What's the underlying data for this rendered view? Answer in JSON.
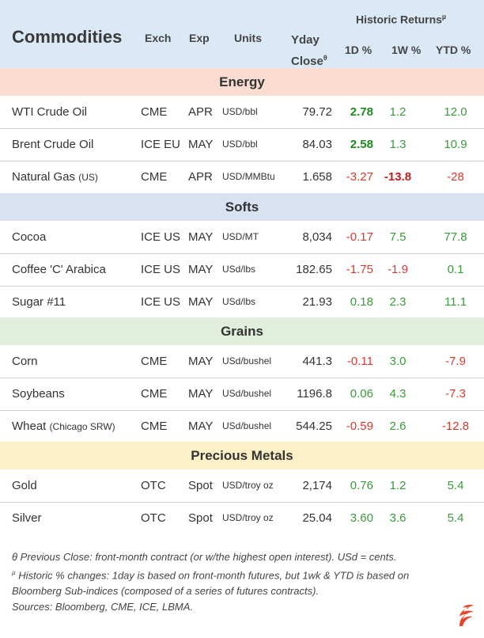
{
  "header": {
    "title": "Commodities",
    "exch": "Exch",
    "exp": "Exp",
    "units": "Units",
    "yday_line1": "Yday",
    "yday_line2": "Close",
    "yday_mark": "θ",
    "hist": "Historic Returns",
    "hist_mark": "µ",
    "col_1d": "1D %",
    "col_1w": "1W %",
    "col_ytd": "YTD %"
  },
  "sections": {
    "energy": "Energy",
    "softs": "Softs",
    "grains": "Grains",
    "metals": "Precious Metals"
  },
  "rows": [
    {
      "name": "WTI Crude Oil",
      "sub": "",
      "exch": "CME",
      "exp": "APR",
      "units": "USD/bbl",
      "close": "79.72",
      "d1": "2.78",
      "w1": "1.2",
      "ytd": "12.0"
    },
    {
      "name": "Brent Crude Oil",
      "sub": "",
      "exch": "ICE EU",
      "exp": "MAY",
      "units": "USD/bbl",
      "close": "84.03",
      "d1": "2.58",
      "w1": "1.3",
      "ytd": "10.9"
    },
    {
      "name": "Natural Gas ",
      "sub": "(US)",
      "exch": "CME",
      "exp": "APR",
      "units": "USD/MMBtu",
      "close": "1.658",
      "d1": "-3.27",
      "w1": "-13.8",
      "ytd": "-28"
    },
    {
      "name": "Cocoa",
      "sub": "",
      "exch": "ICE US",
      "exp": "MAY",
      "units": "USD/MT",
      "close": "8,034",
      "d1": "-0.17",
      "w1": "7.5",
      "ytd": "77.8"
    },
    {
      "name": "Coffee 'C' Arabica",
      "sub": "",
      "exch": "ICE US",
      "exp": "MAY",
      "units": "USd/lbs",
      "close": "182.65",
      "d1": "-1.75",
      "w1": "-1.9",
      "ytd": "0.1"
    },
    {
      "name": "Sugar #11",
      "sub": "",
      "exch": "ICE US",
      "exp": "MAY",
      "units": "USd/lbs",
      "close": "21.93",
      "d1": "0.18",
      "w1": "2.3",
      "ytd": "11.1"
    },
    {
      "name": "Corn",
      "sub": "",
      "exch": "CME",
      "exp": "MAY",
      "units": "USd/bushel",
      "close": "441.3",
      "d1": "-0.11",
      "w1": "3.0",
      "ytd": "-7.9"
    },
    {
      "name": "Soybeans",
      "sub": "",
      "exch": "CME",
      "exp": "MAY",
      "units": "USd/bushel",
      "close": "1196.8",
      "d1": "0.06",
      "w1": "4.3",
      "ytd": "-7.3"
    },
    {
      "name": "Wheat ",
      "sub": "(Chicago SRW)",
      "exch": "CME",
      "exp": "MAY",
      "units": "USd/bushel",
      "close": "544.25",
      "d1": "-0.59",
      "w1": "2.6",
      "ytd": "-12.8"
    },
    {
      "name": "Gold",
      "sub": "",
      "exch": "OTC",
      "exp": "Spot",
      "units": "USD/troy oz",
      "close": "2,174",
      "d1": "0.76",
      "w1": "1.2",
      "ytd": "5.4"
    },
    {
      "name": "Silver",
      "sub": "",
      "exch": "OTC",
      "exp": "Spot",
      "units": "USD/troy oz",
      "close": "25.04",
      "d1": "3.60",
      "w1": "3.6",
      "ytd": "5.4"
    }
  ],
  "footer": {
    "note1_mark": "θ",
    "note1": " Previous Close: front-month contract (or w/the highest open interest). USd = cents.",
    "note2_mark": "µ",
    "note2": " Historic % changes: 1day is based on front-month futures, but 1wk & YTD is based on Bloomberg Sub-indices (composed of a series of futures contracts).",
    "note3": "Sources: Bloomberg, CME, ICE, LBMA."
  },
  "colors": {
    "positive": "#3a9a3a",
    "negative": "#d63a2f",
    "header_bg": "#dbe9f6",
    "energy_bg": "#fbdcd0",
    "softs_bg": "#d9e2f1",
    "grains_bg": "#e0eedb",
    "metals_bg": "#fdefc6",
    "logo": "#e8452c"
  },
  "logo_icon": "flame-logo-icon"
}
